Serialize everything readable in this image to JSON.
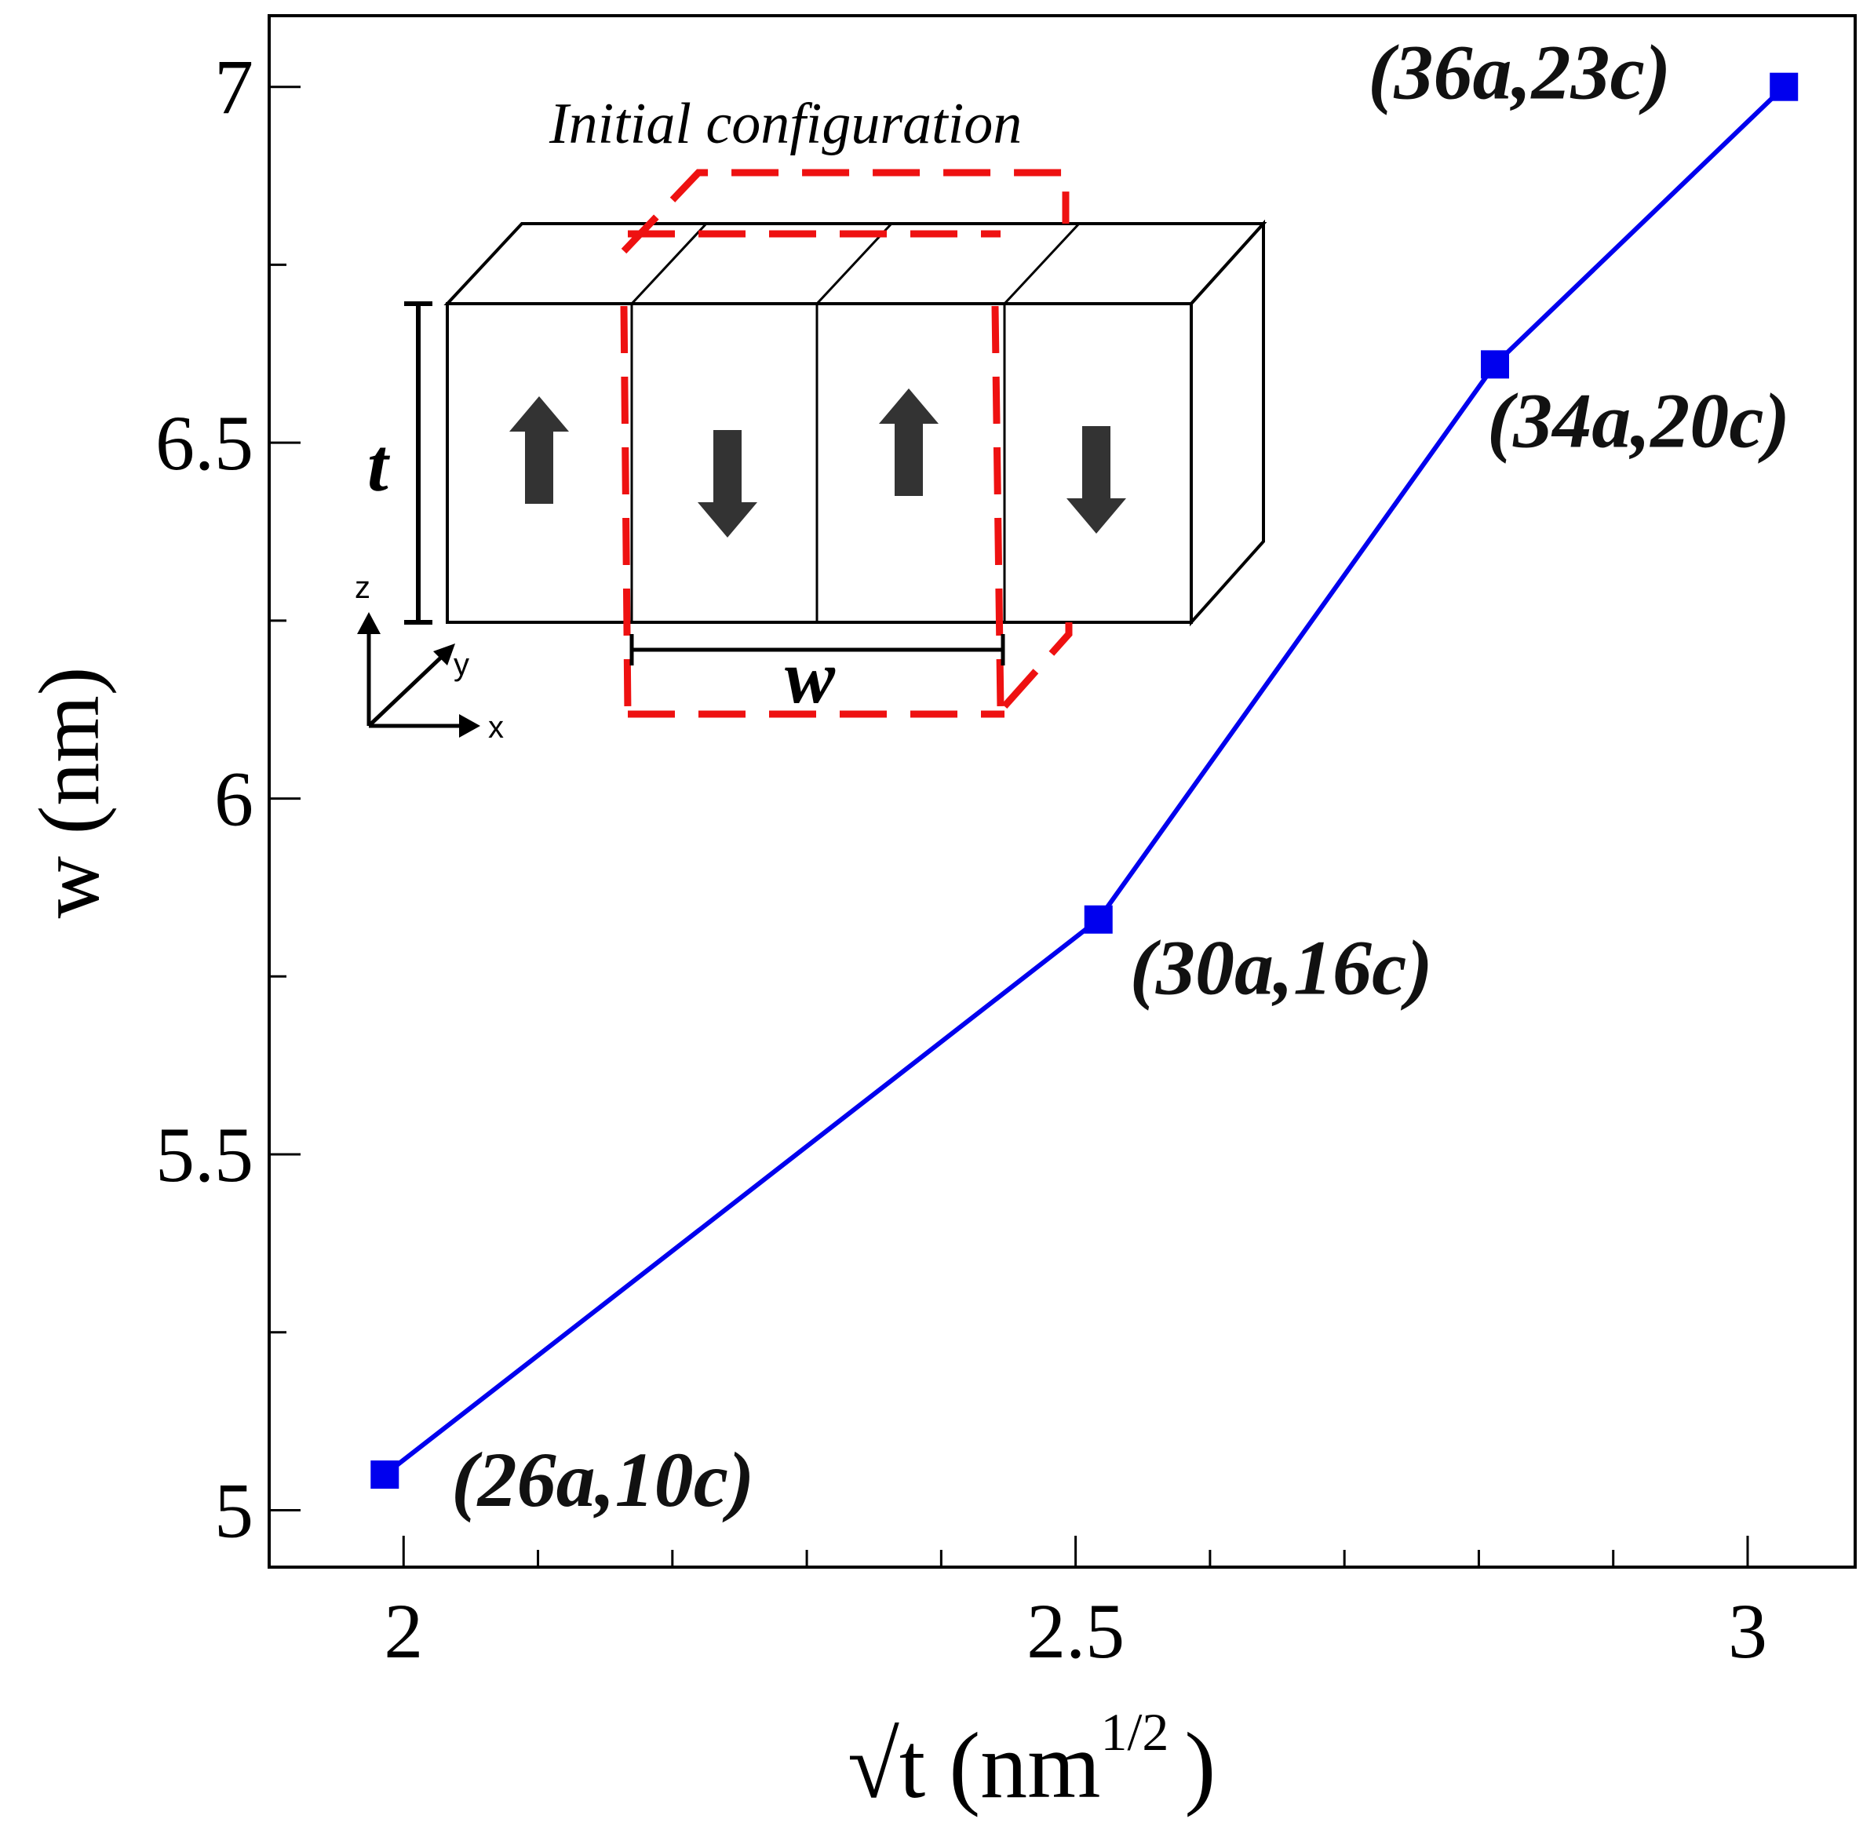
{
  "chart_data": {
    "type": "line",
    "title": "",
    "xlabel": "√t (nm",
    "xlabel_sup": "1/2",
    "xlabel_close": ")",
    "ylabel": "w (nm)",
    "xlim": [
      1.9,
      3.08
    ],
    "ylim": [
      4.92,
      7.1
    ],
    "x_ticks": [
      {
        "value": 2,
        "label": "2"
      },
      {
        "value": 2.5,
        "label": "2.5"
      },
      {
        "value": 3,
        "label": "3"
      }
    ],
    "x_minor_ticks": [
      2.1,
      2.2,
      2.3,
      2.4,
      2.6,
      2.7,
      2.8,
      2.9
    ],
    "y_ticks": [
      {
        "value": 5,
        "label": "5"
      },
      {
        "value": 5.5,
        "label": "5.5"
      },
      {
        "value": 6,
        "label": "6"
      },
      {
        "value": 6.5,
        "label": "6.5"
      },
      {
        "value": 7,
        "label": "7"
      }
    ],
    "y_minor_ticks": [
      5.25,
      5.75,
      6.25,
      6.75
    ],
    "series": [
      {
        "color": "#0000ee",
        "marker": "square",
        "points": [
          {
            "x": 1.986,
            "y": 5.05,
            "label": "(26a,10c)"
          },
          {
            "x": 2.517,
            "y": 5.83,
            "label": "(30a,16c)"
          },
          {
            "x": 2.812,
            "y": 6.61,
            "label": "(34a,20c)"
          },
          {
            "x": 3.027,
            "y": 7.0,
            "label": "(36a,23c)"
          }
        ]
      }
    ],
    "grid": false,
    "legend": "none"
  },
  "inset": {
    "title": "Initial configuration",
    "height_label": "t",
    "width_label": "w",
    "axis_z": "z",
    "axis_y": "y",
    "axis_x": "x",
    "domains": [
      "up",
      "down",
      "up",
      "down"
    ],
    "highlight_color": "#ee1111"
  }
}
